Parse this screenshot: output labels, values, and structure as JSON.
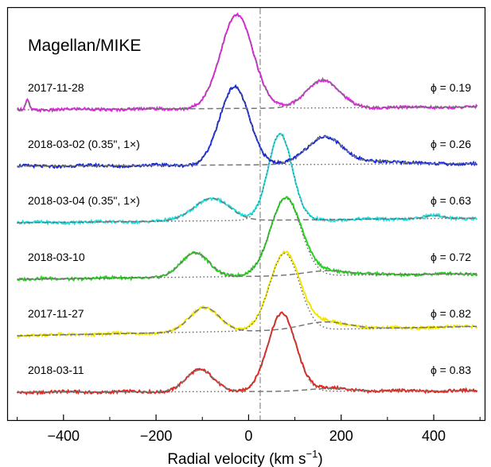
{
  "chart_data": {
    "type": "line",
    "title": "Magellan/MIKE",
    "xlabel": "Radial velocity (km s",
    "xlabel_sup": "−1",
    "xlabel_close": ")",
    "xlim": [
      -520,
      510
    ],
    "xticks": [
      -400,
      -200,
      0,
      200,
      400
    ],
    "xtick_labels": [
      "−400",
      "−200",
      "0",
      "200",
      "400"
    ],
    "systemic_velocity": 25,
    "series": [
      {
        "date": "2018-03-11",
        "phase_label": "ϕ = 0.83",
        "color": "#e8241c",
        "baseline": [
          0.0,
          0.015
        ],
        "components": [
          {
            "center": -105,
            "sigma": 30,
            "amplitude": 0.23
          },
          {
            "center": 72,
            "sigma": 30,
            "amplitude": 0.83
          },
          {
            "center": 175,
            "sigma": 45,
            "amplitude": 0.03
          }
        ]
      },
      {
        "date": "2017-11-27",
        "phase_label": "ϕ = 0.82",
        "color": "#f2e600",
        "baseline": [
          0.0,
          0.1
        ],
        "components": [
          {
            "center": -95,
            "sigma": 32,
            "amplitude": 0.26
          },
          {
            "center": 78,
            "sigma": 32,
            "amplitude": 0.82
          },
          {
            "center": 165,
            "sigma": 50,
            "amplitude": 0.08
          }
        ]
      },
      {
        "date": "2018-03-10",
        "phase_label": "ϕ = 0.72",
        "color": "#27d21e",
        "baseline": [
          0.0,
          0.06
        ],
        "components": [
          {
            "center": -115,
            "sigma": 30,
            "amplitude": 0.26
          },
          {
            "center": 80,
            "sigma": 33,
            "amplitude": 0.83
          },
          {
            "center": 170,
            "sigma": 50,
            "amplitude": 0.05
          }
        ]
      },
      {
        "date": "2018-03-04 (0.35\", 1×)",
        "phase_label": "ϕ = 0.63",
        "color": "#1ee0e0",
        "baseline": [
          0.0,
          0.05
        ],
        "components": [
          {
            "center": -80,
            "sigma": 38,
            "amplitude": 0.24
          },
          {
            "center": 68,
            "sigma": 26,
            "amplitude": 0.92
          },
          {
            "center": 400,
            "sigma": 20,
            "amplitude": 0.03
          }
        ]
      },
      {
        "date": "2018-03-02 (0.35\", 1×)",
        "phase_label": "ϕ = 0.26",
        "color": "#1528d8",
        "baseline": [
          0.0,
          0.03
        ],
        "components": [
          {
            "center": -30,
            "sigma": 32,
            "amplitude": 0.83
          },
          {
            "center": 165,
            "sigma": 38,
            "amplitude": 0.3
          },
          {
            "center": 290,
            "sigma": 40,
            "amplitude": 0.03
          }
        ]
      },
      {
        "date": "2017-11-28",
        "phase_label": "ϕ = 0.19",
        "color": "#e028e0",
        "baseline": [
          0.0,
          0.03
        ],
        "components": [
          {
            "center": -25,
            "sigma": 35,
            "amplitude": 1.0
          },
          {
            "center": 160,
            "sigma": 35,
            "amplitude": 0.3
          },
          {
            "center": -478,
            "sigma": 4,
            "amplitude": 0.1
          }
        ]
      }
    ]
  }
}
